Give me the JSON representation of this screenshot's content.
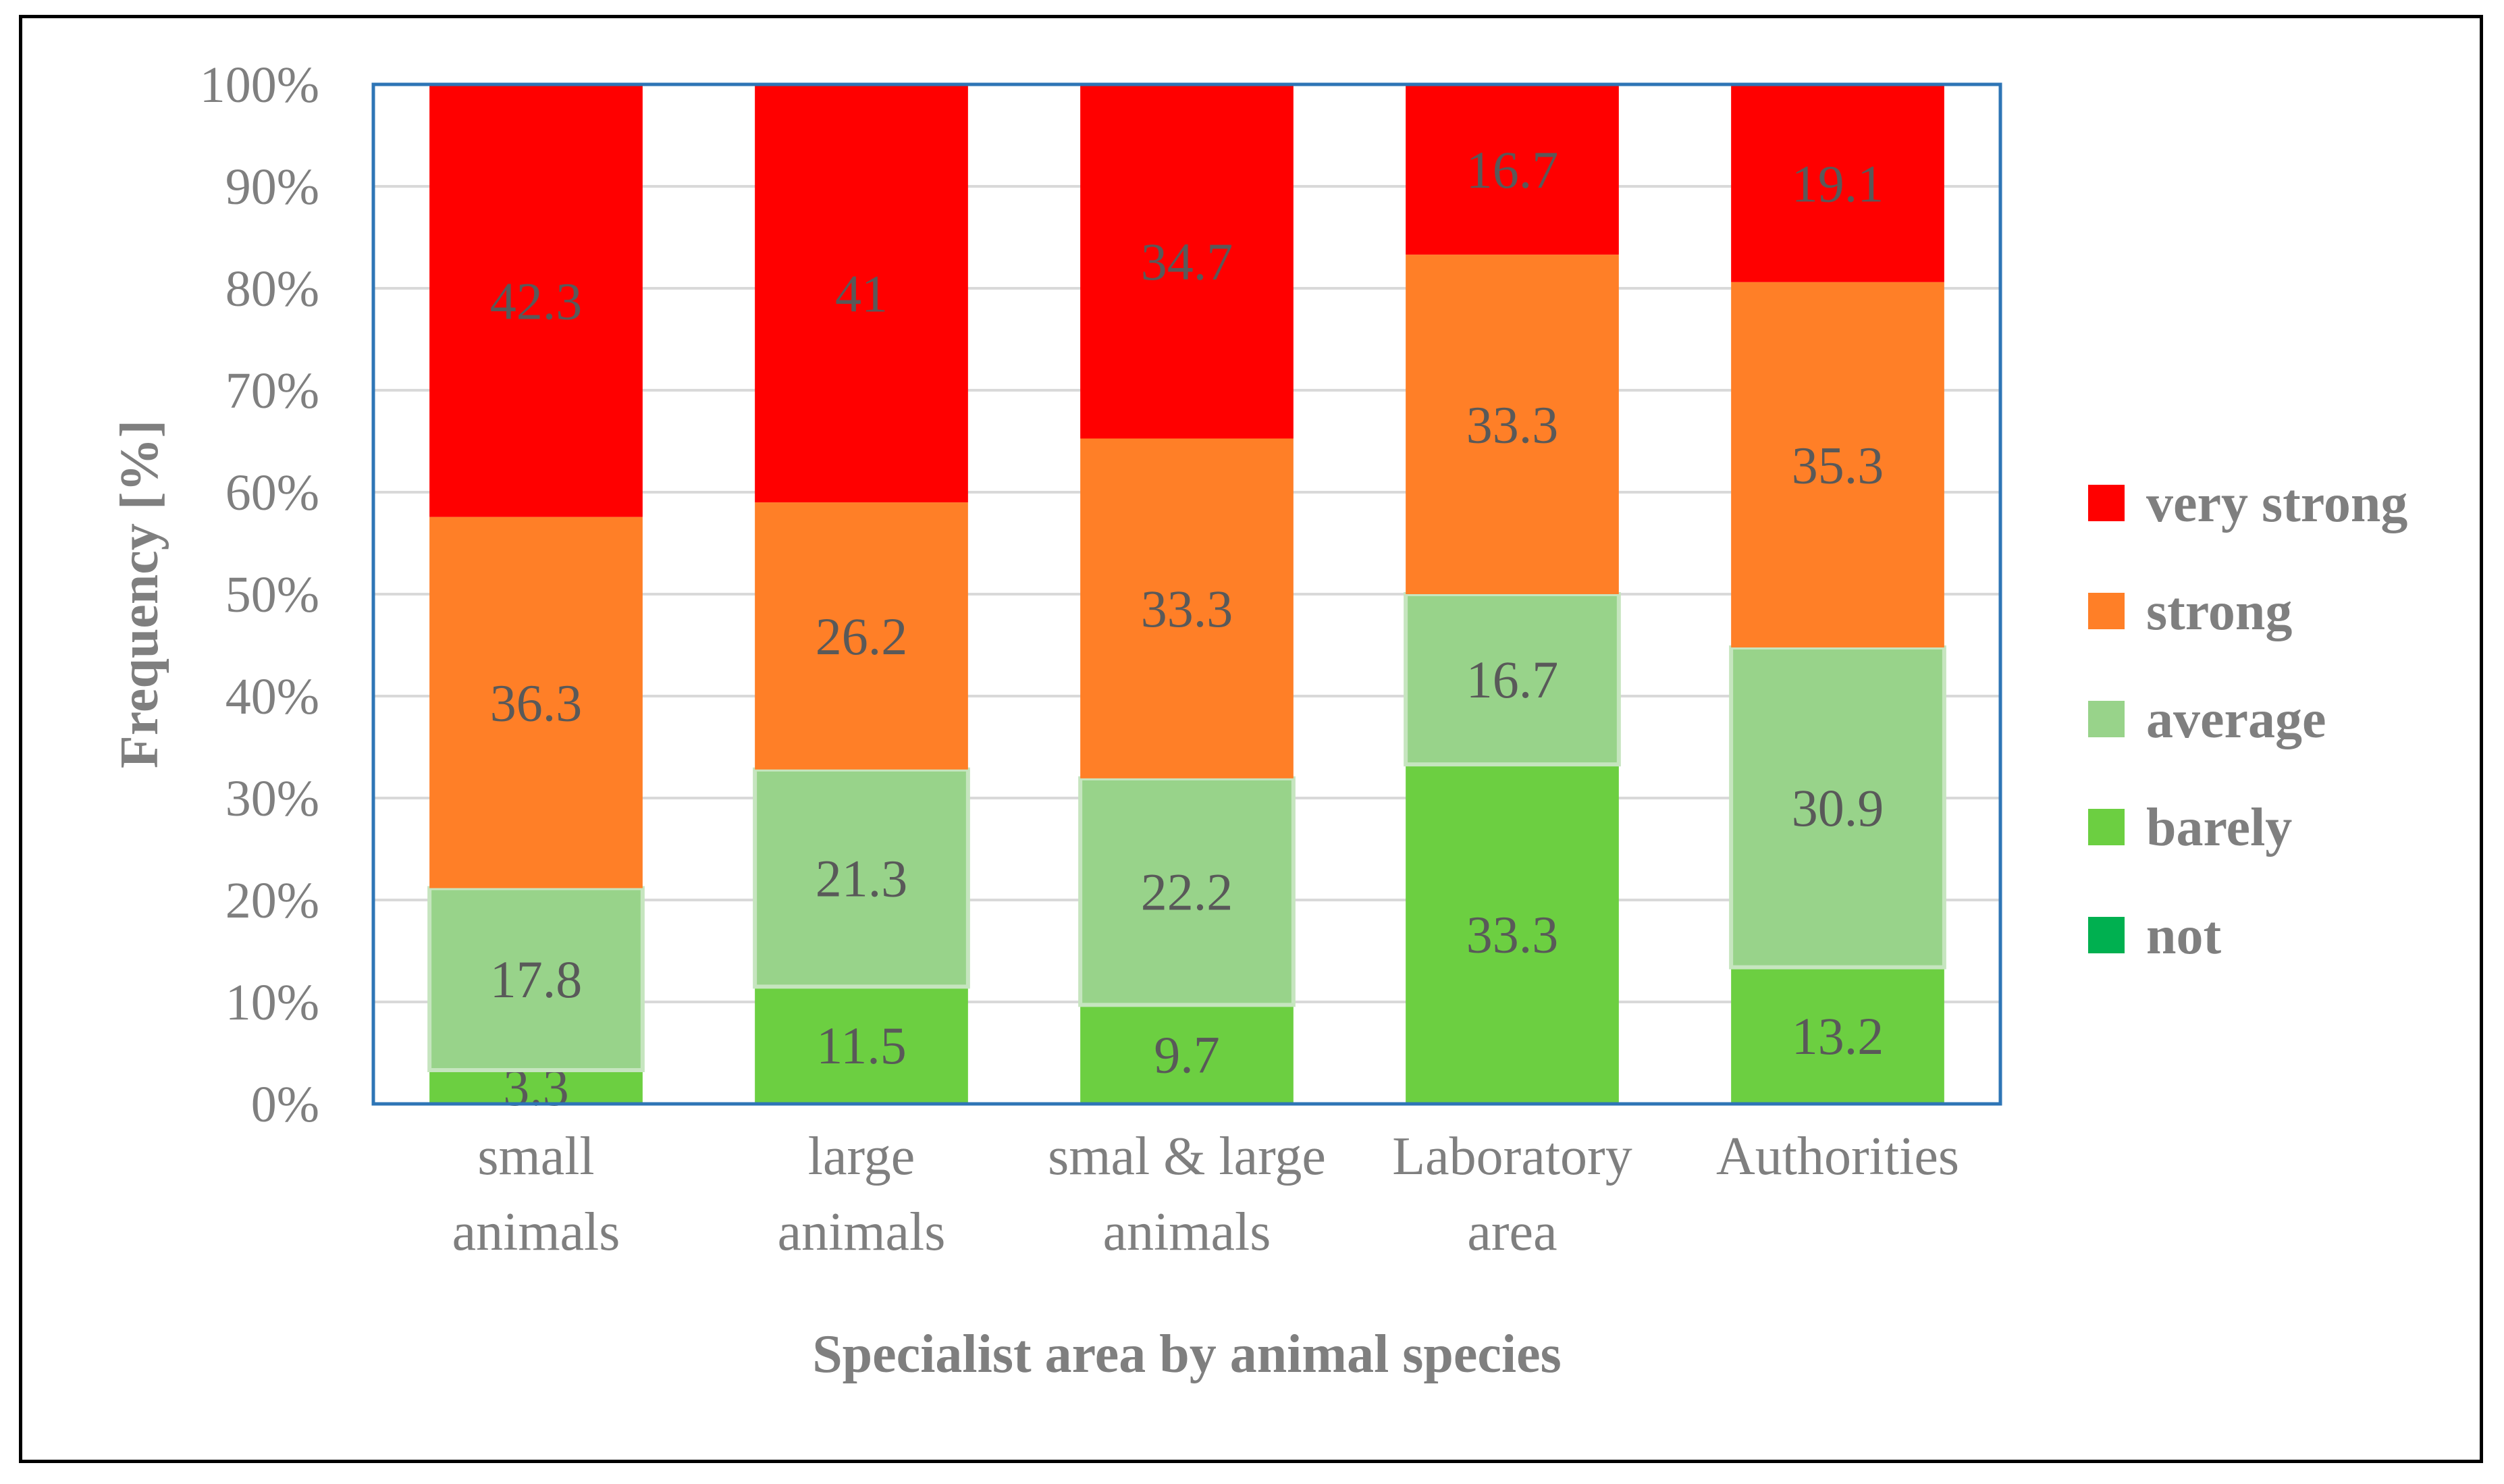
{
  "chart_data": {
    "type": "bar",
    "stacked": true,
    "percent_stacked": true,
    "categories": [
      [
        "small",
        "animals"
      ],
      [
        "large",
        "animals"
      ],
      [
        "smal & large",
        "animals"
      ],
      [
        "Laboratory",
        "area"
      ],
      [
        "Authorities"
      ]
    ],
    "series": [
      {
        "name": "not",
        "color": "#00b050",
        "values": [
          0,
          0,
          0,
          0,
          0
        ]
      },
      {
        "name": "barely",
        "color": "#6ccf41",
        "values": [
          3.3,
          11.5,
          9.7,
          33.3,
          13.2
        ]
      },
      {
        "name": "average",
        "color": "#98d38a",
        "values": [
          17.8,
          21.3,
          22.2,
          16.7,
          30.9
        ]
      },
      {
        "name": "strong",
        "color": "#ff7f27",
        "values": [
          36.3,
          26.2,
          33.3,
          33.3,
          35.3
        ]
      },
      {
        "name": "very strong",
        "color": "#ff0000",
        "values": [
          42.3,
          41,
          34.7,
          16.7,
          19.1
        ]
      }
    ],
    "xlabel": "Specialist area by animal species",
    "ylabel": "Frequency [%]",
    "ylim": [
      0,
      100
    ],
    "yticks": [
      "0%",
      "10%",
      "20%",
      "30%",
      "40%",
      "50%",
      "60%",
      "70%",
      "80%",
      "90%",
      "100%"
    ],
    "grid": true,
    "legend": "right",
    "legend_order": [
      "very strong",
      "strong",
      "average",
      "barely",
      "not"
    ],
    "plot_border_color": "#2e75b6",
    "gridline_color": "#d9d9d9"
  }
}
